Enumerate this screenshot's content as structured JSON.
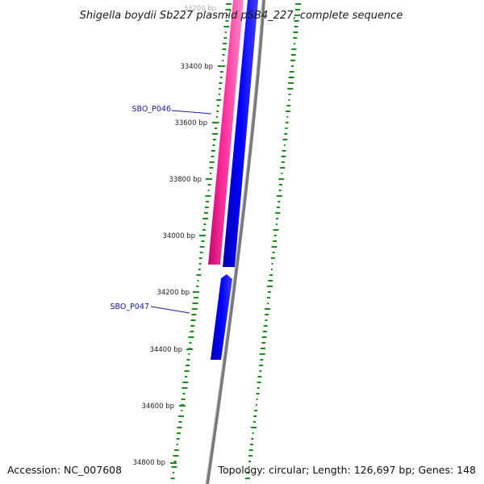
{
  "header": {
    "title": "Shigella boydii Sb227 plasmid pSB4_227, complete sequence",
    "top_tick_label": "33200 bp"
  },
  "footer": {
    "accession": "Accession: NC_007608",
    "summary": "Topology: circular; Length: 126,697 bp; Genes: 148"
  },
  "colors": {
    "forward_cds": "#ff1493",
    "reverse_cds": "#0000ff",
    "backbone": "#888888",
    "gc_skew": "#1e8c1e",
    "gene_label": "#1a1aa6"
  },
  "ticks": [
    {
      "label": "33400 bp"
    },
    {
      "label": "33600 bp"
    },
    {
      "label": "33800 bp"
    },
    {
      "label": "34000 bp"
    },
    {
      "label": "34200 bp"
    },
    {
      "label": "34400 bp"
    },
    {
      "label": "34600 bp"
    },
    {
      "label": "34800 bp"
    }
  ],
  "genes": [
    {
      "label": "SBO_P046",
      "strand": "forward+reverse"
    },
    {
      "label": "SBO_P047",
      "strand": "reverse"
    }
  ]
}
